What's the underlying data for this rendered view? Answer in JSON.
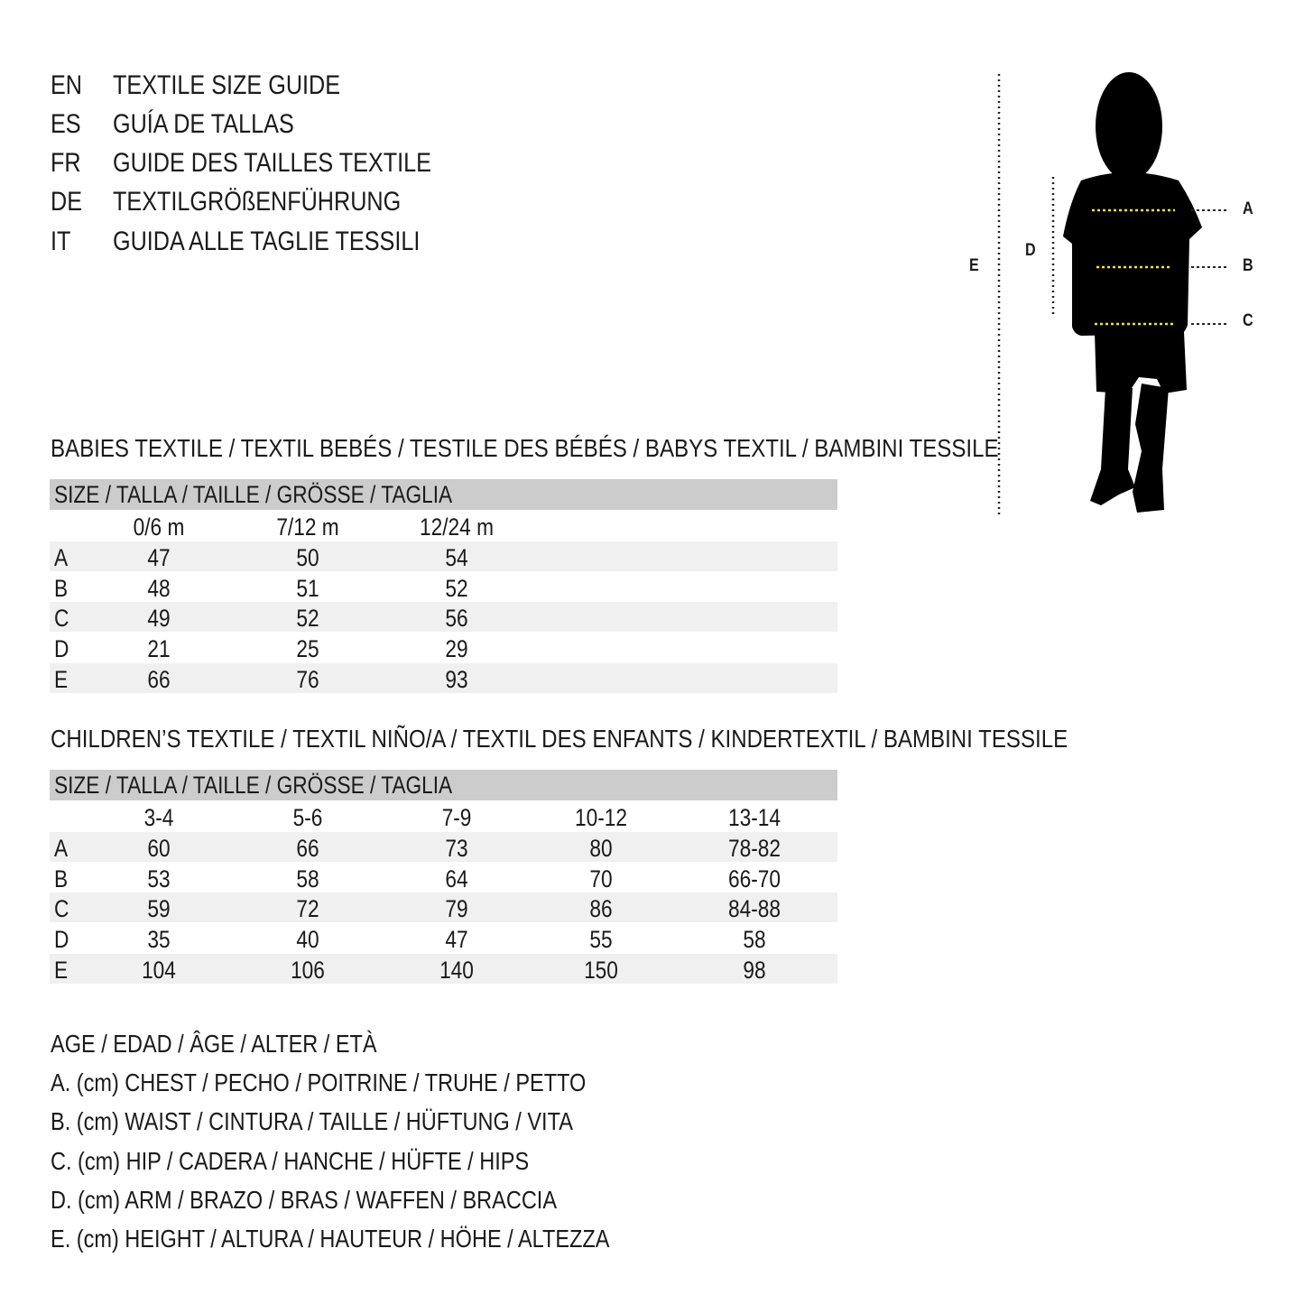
{
  "titles": [
    {
      "lang": "EN",
      "text": "TEXTILE SIZE GUIDE"
    },
    {
      "lang": "ES",
      "text": "GUÍA DE TALLAS"
    },
    {
      "lang": "FR",
      "text": "GUIDE DES TAILLES TEXTILE"
    },
    {
      "lang": "DE",
      "text": "TEXTILGRÖßENFÜHRUNG"
    },
    {
      "lang": "IT",
      "text": "GUIDA ALLE TAGLIE TESSILI"
    }
  ],
  "figure": {
    "labels": {
      "a": "A",
      "b": "B",
      "c": "C",
      "d": "D",
      "e": "E"
    },
    "measure_line_color": "#f5e13a"
  },
  "babies": {
    "heading": "BABIES TEXTILE / TEXTIL BEBÉS / TESTILE DES BÉBÉS / BABYS TEXTIL / BAMBINI TESSILE",
    "size_header": "SIZE / TALLA / TAILLE / GRÖSSE / TAGLIA",
    "columns": [
      "0/6 m",
      "7/12 m",
      "12/24 m"
    ],
    "rows": [
      {
        "label": "A",
        "values": [
          "47",
          "50",
          "54"
        ]
      },
      {
        "label": "B",
        "values": [
          "48",
          "51",
          "52"
        ]
      },
      {
        "label": "C",
        "values": [
          "49",
          "52",
          "56"
        ]
      },
      {
        "label": "D",
        "values": [
          "21",
          "25",
          "29"
        ]
      },
      {
        "label": "E",
        "values": [
          "66",
          "76",
          "93"
        ]
      }
    ]
  },
  "children": {
    "heading": "CHILDREN’S TEXTILE / TEXTIL NIÑO/A / TEXTIL DES ENFANTS / KINDERTEXTIL / BAMBINI TESSILE",
    "size_header": "SIZE / TALLA / TAILLE / GRÖSSE / TAGLIA",
    "columns": [
      "3-4",
      "5-6",
      "7-9",
      "10-12",
      "13-14"
    ],
    "rows": [
      {
        "label": "A",
        "values": [
          "60",
          "66",
          "73",
          "80",
          "78-82"
        ]
      },
      {
        "label": "B",
        "values": [
          "53",
          "58",
          "64",
          "70",
          "66-70"
        ]
      },
      {
        "label": "C",
        "values": [
          "59",
          "72",
          "79",
          "86",
          "84-88"
        ]
      },
      {
        "label": "D",
        "values": [
          "35",
          "40",
          "47",
          "55",
          "58"
        ]
      },
      {
        "label": "E",
        "values": [
          "104",
          "106",
          "140",
          "150",
          "98"
        ]
      }
    ]
  },
  "legend": [
    "AGE / EDAD / ÂGE / ALTER / ETÀ",
    "A. (cm) CHEST / PECHO / POITRINE / TRUHE / PETTO",
    "B. (cm) WAIST / CINTURA / TAILLE / HÜFTUNG / VITA",
    "C. (cm) HIP / CADERA / HANCHE / HÜFTE / HIPS",
    "D. (cm) ARM / BRAZO / BRAS / WAFFEN / BRACCIA",
    "E. (cm) HEIGHT / ALTURA / HAUTEUR / HÖHE / ALTEZZA"
  ]
}
